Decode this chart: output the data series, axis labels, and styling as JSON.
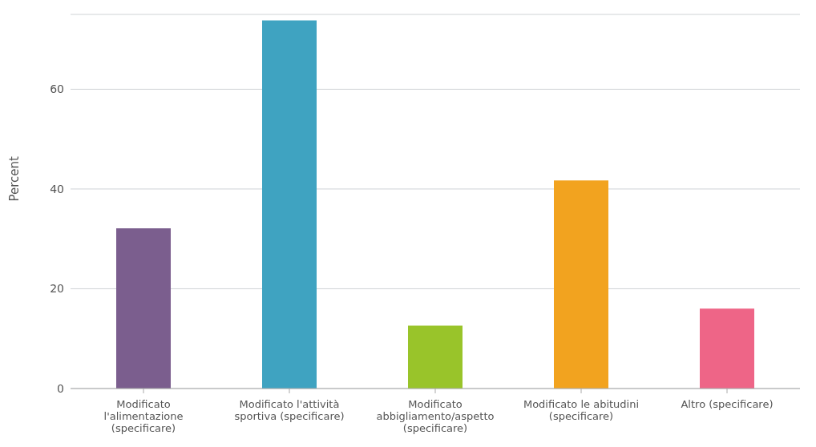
{
  "chart_data": {
    "type": "bar",
    "ylabel": "Percent",
    "categories": [
      "Modificato l'alimentazione (specificare)",
      "Modificato l'attività sportiva (specificare)",
      "Modificato abbigliamento/aspetto (specificare)",
      "Modificato le abitudini (specificare)",
      "Altro (specificare)"
    ],
    "values": [
      32.1,
      73.8,
      12.6,
      41.7,
      16
    ],
    "colors": [
      "#7b5e8e",
      "#3fa3c1",
      "#99c42a",
      "#f2a31f",
      "#ee6587"
    ],
    "ylim": [
      0,
      75
    ],
    "yticks": [
      0,
      20,
      40,
      60
    ],
    "grid": "y",
    "legend": false
  }
}
